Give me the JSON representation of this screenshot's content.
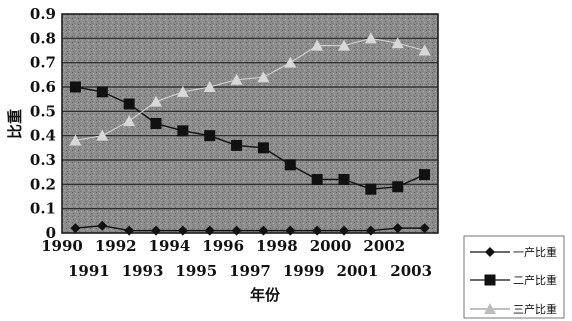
{
  "chart_data": {
    "type": "line",
    "ylabel": "比重",
    "xlabel": "年份",
    "xlim": [
      1990,
      2004
    ],
    "ylim": [
      0,
      0.9
    ],
    "yticks": [
      "0",
      "0.1",
      "0.2",
      "0.3",
      "0.4",
      "0.5",
      "0.6",
      "0.7",
      "0.8",
      "0.9"
    ],
    "xticks_top": [
      "1990",
      "1992",
      "1994",
      "1996",
      "1998",
      "2000",
      "2002"
    ],
    "xticks_bottom": [
      "1991",
      "1993",
      "1995",
      "1997",
      "1999",
      "2001",
      "2003"
    ],
    "grid": true,
    "legend_position": "bottom-right",
    "x": [
      1990.5,
      1991.5,
      1992.5,
      1993.5,
      1994.5,
      1995.5,
      1996.5,
      1997.5,
      1998.5,
      1999.5,
      2000.5,
      2001.5,
      2002.5,
      2003.5
    ],
    "series": [
      {
        "name": "一产比重",
        "marker": "diamond",
        "color": "#111111",
        "values": [
          0.02,
          0.03,
          0.01,
          0.01,
          0.01,
          0.01,
          0.01,
          0.01,
          0.01,
          0.01,
          0.01,
          0.01,
          0.02,
          0.02
        ]
      },
      {
        "name": "二产比重",
        "marker": "square",
        "color": "#111111",
        "values": [
          0.6,
          0.58,
          0.53,
          0.45,
          0.42,
          0.4,
          0.36,
          0.35,
          0.28,
          0.22,
          0.22,
          0.18,
          0.19,
          0.24
        ]
      },
      {
        "name": "三产比重",
        "marker": "triangle",
        "color": "#d8d8d8",
        "values": [
          0.38,
          0.4,
          0.46,
          0.54,
          0.58,
          0.6,
          0.63,
          0.64,
          0.7,
          0.77,
          0.77,
          0.8,
          0.78,
          0.75
        ]
      }
    ]
  }
}
